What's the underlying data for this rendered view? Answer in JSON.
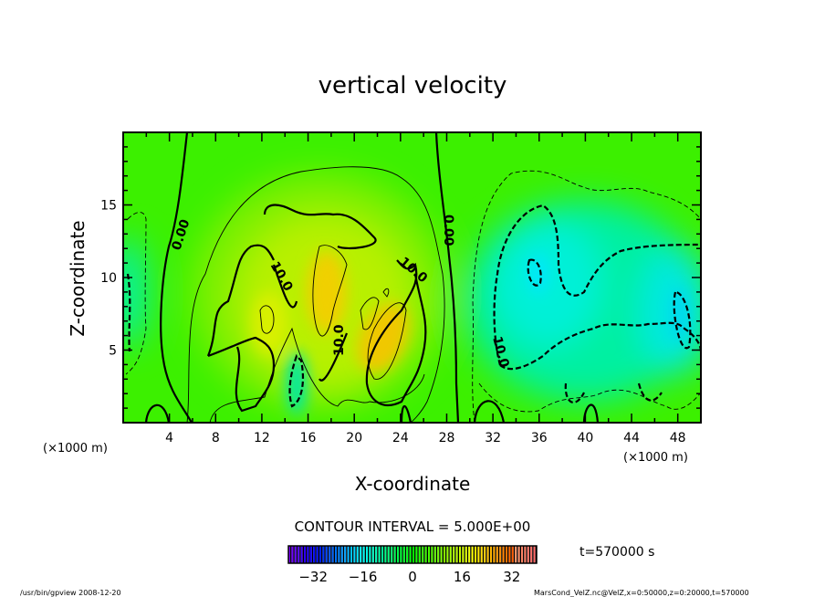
{
  "chart_data": {
    "type": "heatmap",
    "title": "vertical velocity",
    "xlabel": "X-coordinate",
    "ylabel": "Z-coordinate",
    "x_unit_left": "(×1000 m)",
    "x_unit_right": "(×1000 m)",
    "xlim": [
      0,
      50
    ],
    "ylim": [
      0,
      20
    ],
    "xticks": [
      4,
      8,
      12,
      16,
      20,
      24,
      28,
      32,
      36,
      40,
      44,
      48
    ],
    "yticks": [
      5,
      10,
      15
    ],
    "contour_interval_text": "CONTOUR INTERVAL = 5.000E+00",
    "contour_labels": [
      "0.00",
      "0.00",
      "10.0",
      "10.0",
      "10.0",
      "10.0"
    ],
    "colorbar": {
      "range": [
        -40,
        40
      ],
      "ticks": [
        -32,
        -16,
        0,
        16,
        32
      ],
      "tick_labels": [
        "−32",
        "−16",
        "0",
        "16",
        "32"
      ]
    },
    "time_label": "t=570000 s",
    "features": [
      {
        "name": "updraft",
        "x": 20,
        "z": 8,
        "value": 20
      },
      {
        "name": "downdraft-left",
        "x": 15,
        "z": 2,
        "value": -10
      },
      {
        "name": "downdraft-right",
        "x": 36,
        "z": 10,
        "value": -14
      },
      {
        "name": "downdraft-far-right",
        "x": 48,
        "z": 7,
        "value": -14
      }
    ]
  },
  "footer": {
    "left": "/usr/bin/gpview  2008-12-20",
    "right": "MarsCond_VelZ.nc@VelZ,x=0:50000,z=0:20000,t=570000"
  }
}
